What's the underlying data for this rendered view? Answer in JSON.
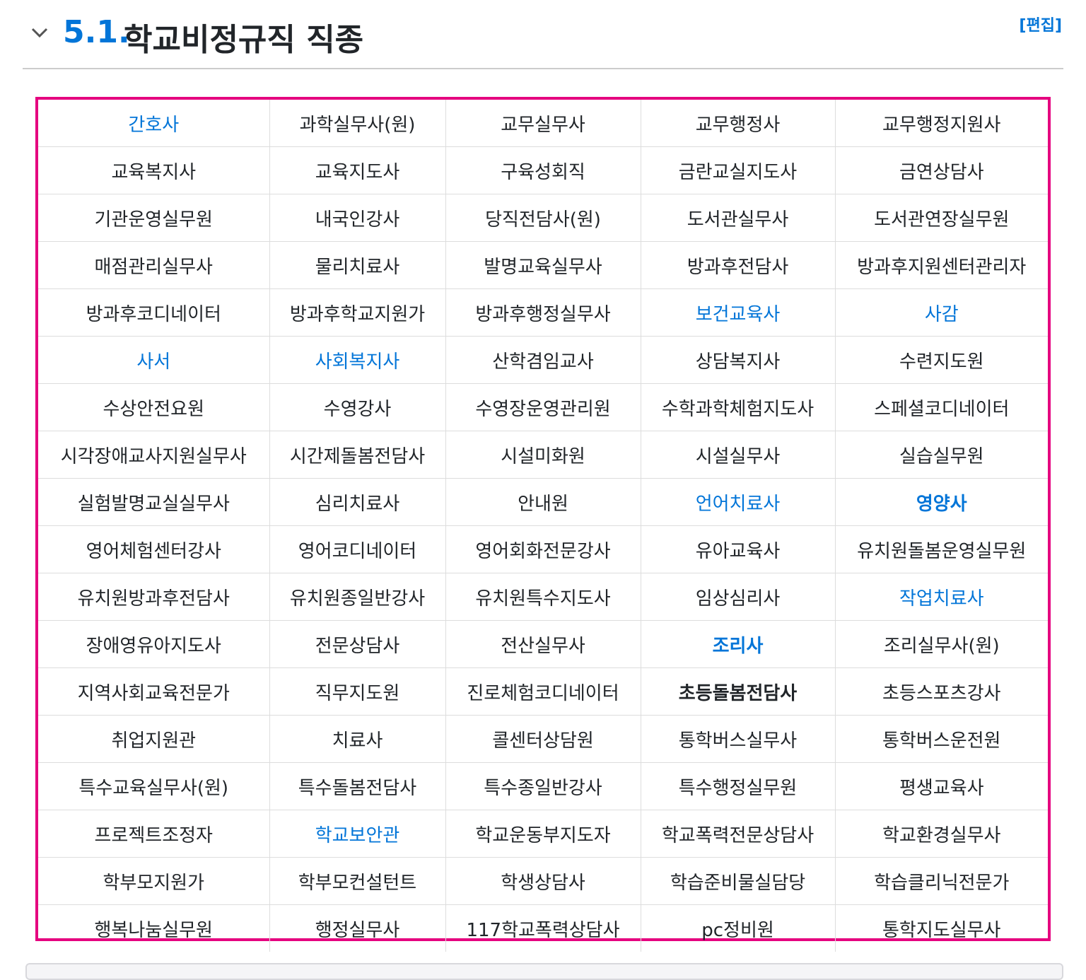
{
  "heading": {
    "number": "5.1.",
    "title": "학교비정규직 직종",
    "edit_label": "[편집]",
    "collapse_icon": "chevron-down-icon"
  },
  "colors": {
    "accent": "#0275d8",
    "table_border": "#e5007f"
  },
  "table": {
    "rows": [
      [
        {
          "text": "간호사",
          "style": "link"
        },
        {
          "text": "과학실무사(원)"
        },
        {
          "text": "교무실무사"
        },
        {
          "text": "교무행정사"
        },
        {
          "text": "교무행정지원사"
        }
      ],
      [
        {
          "text": "교육복지사"
        },
        {
          "text": "교육지도사"
        },
        {
          "text": "구육성회직"
        },
        {
          "text": "금란교실지도사"
        },
        {
          "text": "금연상담사"
        }
      ],
      [
        {
          "text": "기관운영실무원"
        },
        {
          "text": "내국인강사"
        },
        {
          "text": "당직전담사(원)"
        },
        {
          "text": "도서관실무사"
        },
        {
          "text": "도서관연장실무원"
        }
      ],
      [
        {
          "text": "매점관리실무사"
        },
        {
          "text": "물리치료사"
        },
        {
          "text": "발명교육실무사"
        },
        {
          "text": "방과후전담사"
        },
        {
          "text": "방과후지원센터관리자"
        }
      ],
      [
        {
          "text": "방과후코디네이터"
        },
        {
          "text": "방과후학교지원가"
        },
        {
          "text": "방과후행정실무사"
        },
        {
          "text": "보건교육사",
          "style": "link"
        },
        {
          "text": "사감",
          "style": "link"
        }
      ],
      [
        {
          "text": "사서",
          "style": "link"
        },
        {
          "text": "사회복지사",
          "style": "link"
        },
        {
          "text": "산학겸임교사"
        },
        {
          "text": "상담복지사"
        },
        {
          "text": "수련지도원"
        }
      ],
      [
        {
          "text": "수상안전요원"
        },
        {
          "text": "수영강사"
        },
        {
          "text": "수영장운영관리원"
        },
        {
          "text": "수학과학체험지도사"
        },
        {
          "text": "스페셜코디네이터"
        }
      ],
      [
        {
          "text": "시각장애교사지원실무사"
        },
        {
          "text": "시간제돌봄전담사"
        },
        {
          "text": "시설미화원"
        },
        {
          "text": "시설실무사"
        },
        {
          "text": "실습실무원"
        }
      ],
      [
        {
          "text": "실험발명교실실무사"
        },
        {
          "text": "심리치료사"
        },
        {
          "text": "안내원"
        },
        {
          "text": "언어치료사",
          "style": "link"
        },
        {
          "text": "영양사",
          "style": "link bold"
        }
      ],
      [
        {
          "text": "영어체험센터강사"
        },
        {
          "text": "영어코디네이터"
        },
        {
          "text": "영어회화전문강사"
        },
        {
          "text": "유아교육사"
        },
        {
          "text": "유치원돌봄운영실무원"
        }
      ],
      [
        {
          "text": "유치원방과후전담사"
        },
        {
          "text": "유치원종일반강사"
        },
        {
          "text": "유치원특수지도사"
        },
        {
          "text": "임상심리사"
        },
        {
          "text": "작업치료사",
          "style": "link"
        }
      ],
      [
        {
          "text": "장애영유아지도사"
        },
        {
          "text": "전문상담사"
        },
        {
          "text": "전산실무사"
        },
        {
          "text": "조리사",
          "style": "link bold"
        },
        {
          "text": "조리실무사(원)"
        }
      ],
      [
        {
          "text": "지역사회교육전문가"
        },
        {
          "text": "직무지도원"
        },
        {
          "text": "진로체험코디네이터"
        },
        {
          "text": "초등돌봄전담사",
          "style": "bold"
        },
        {
          "text": "초등스포츠강사"
        }
      ],
      [
        {
          "text": "취업지원관"
        },
        {
          "text": "치료사"
        },
        {
          "text": "콜센터상담원"
        },
        {
          "text": "통학버스실무사"
        },
        {
          "text": "통학버스운전원"
        }
      ],
      [
        {
          "text": "특수교육실무사(원)"
        },
        {
          "text": "특수돌봄전담사"
        },
        {
          "text": "특수종일반강사"
        },
        {
          "text": "특수행정실무원"
        },
        {
          "text": "평생교육사"
        }
      ],
      [
        {
          "text": "프로젝트조정자"
        },
        {
          "text": "학교보안관",
          "style": "link"
        },
        {
          "text": "학교운동부지도자"
        },
        {
          "text": "학교폭력전문상담사"
        },
        {
          "text": "학교환경실무사"
        }
      ],
      [
        {
          "text": "학부모지원가"
        },
        {
          "text": "학부모컨설턴트"
        },
        {
          "text": "학생상담사"
        },
        {
          "text": "학습준비물실담당"
        },
        {
          "text": "학습클리닉전문가"
        }
      ],
      [
        {
          "text": "행복나눔실무원"
        },
        {
          "text": "행정실무사"
        },
        {
          "text": "117학교폭력상담사"
        },
        {
          "text": "pc정비원"
        },
        {
          "text": "통학지도실무사"
        }
      ]
    ]
  }
}
